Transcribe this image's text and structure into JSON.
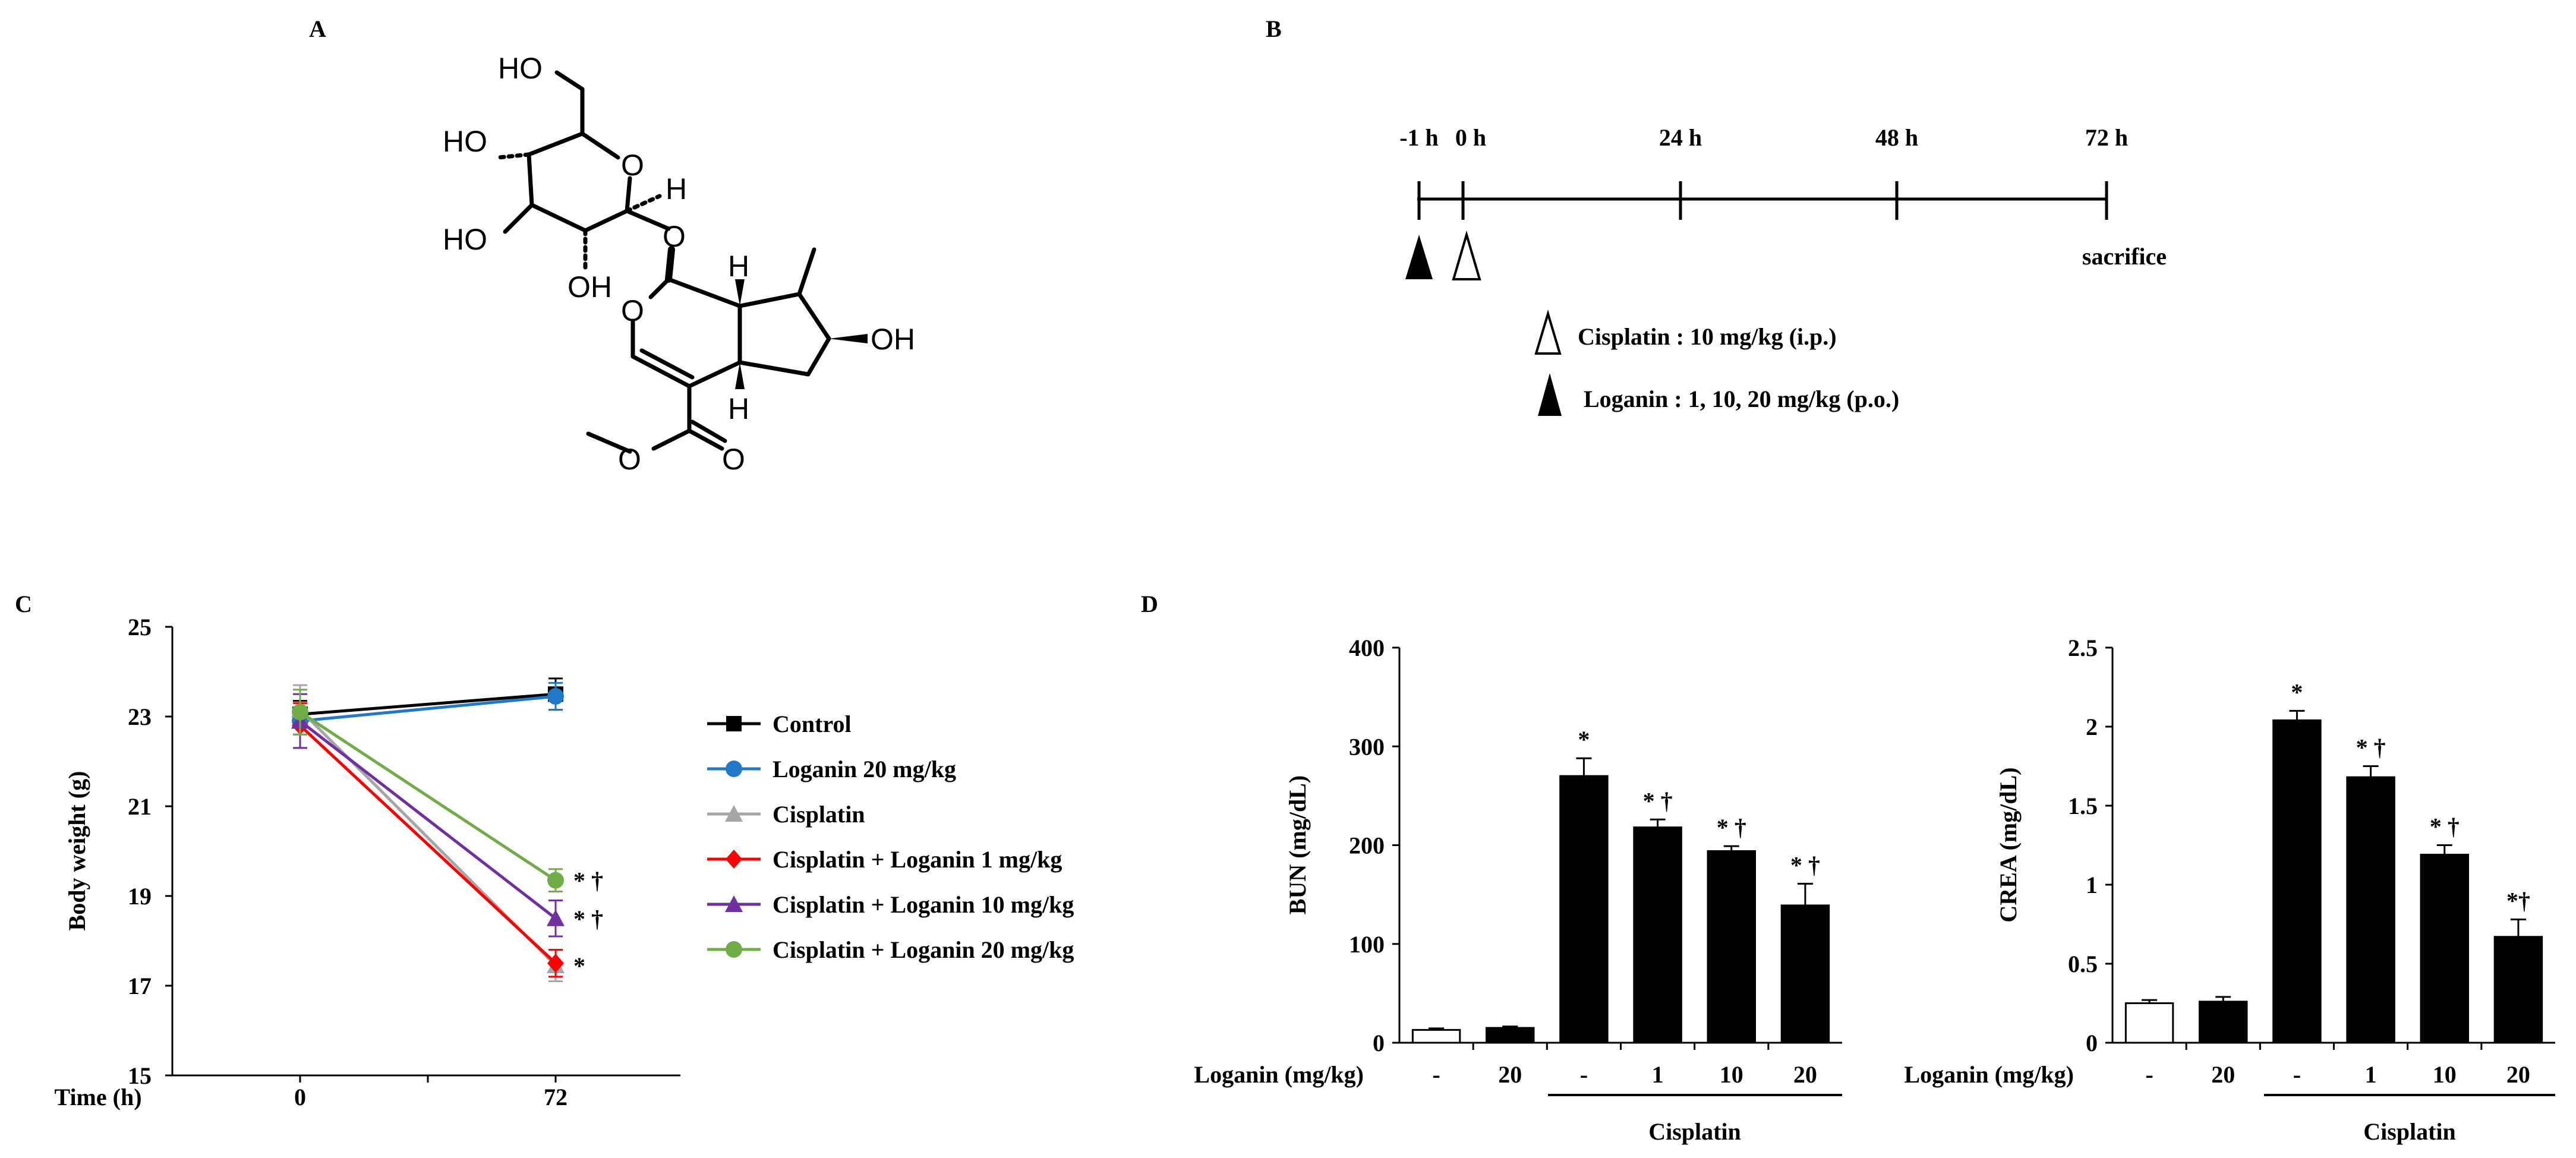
{
  "panels": {
    "a": {
      "label": "A"
    },
    "b": {
      "label": "B"
    },
    "c": {
      "label": "C"
    },
    "d": {
      "label": "D"
    }
  },
  "structure": {
    "atoms": {
      "ho_top": "HO",
      "ho_left1": "HO",
      "ho_left2": "HO",
      "oh_bottom": "OH",
      "o_ring": "O",
      "h_ring": "H",
      "o_link": "O",
      "o_pyran": "O",
      "h_upper": "H",
      "oh_right": "OH",
      "h_lower": "H",
      "o_ester": "O",
      "o_carbonyl": "O"
    }
  },
  "timeline": {
    "ticks": [
      "-1 h",
      "0 h",
      "24 h",
      "48 h",
      "72 h"
    ],
    "end_label": "sacrifice",
    "legend_cisplatin": "Cisplatin : 10 mg/kg (i.p.)",
    "legend_loganin": "Loganin : 1, 10, 20 mg/kg (p.o.)"
  },
  "chart_data": [
    {
      "type": "line",
      "panel": "C",
      "xlabel": "Time (h)",
      "ylabel": "Body weight (g)",
      "x": [
        0,
        72
      ],
      "x_ticks": [
        "0",
        "72"
      ],
      "ylim": [
        15,
        25
      ],
      "y_ticks": [
        "15",
        "17",
        "19",
        "21",
        "23",
        "25"
      ],
      "legend_position": "right",
      "series": [
        {
          "name": "Control",
          "color": "#000000",
          "marker": "square",
          "values": [
            23.05,
            23.5
          ],
          "errors": [
            0.3,
            0.35
          ],
          "annotation": ""
        },
        {
          "name": "Loganin 20 mg/kg",
          "color": "#1f78c8",
          "marker": "circle",
          "values": [
            22.9,
            23.45
          ],
          "errors": [
            0.3,
            0.3
          ],
          "annotation": ""
        },
        {
          "name": "Cisplatin",
          "color": "#a6a6a6",
          "marker": "triangle",
          "values": [
            23.15,
            17.45
          ],
          "errors": [
            0.55,
            0.35
          ],
          "annotation": "*"
        },
        {
          "name": "Cisplatin + Loganin 1 mg/kg",
          "color": "#ff0000",
          "marker": "diamond",
          "values": [
            22.8,
            17.5
          ],
          "errors": [
            0.5,
            0.3
          ],
          "annotation": ""
        },
        {
          "name": "Cisplatin + Loganin 10 mg/kg",
          "color": "#7030a0",
          "marker": "triangle",
          "values": [
            22.9,
            18.5
          ],
          "errors": [
            0.6,
            0.4
          ],
          "annotation": "* †"
        },
        {
          "name": "Cisplatin + Loganin 20 mg/kg",
          "color": "#70ad47",
          "marker": "circle",
          "values": [
            23.1,
            19.35
          ],
          "errors": [
            0.5,
            0.25
          ],
          "annotation": "* †"
        }
      ]
    },
    {
      "type": "bar",
      "panel": "D",
      "ylabel": "BUN (mg/dL)",
      "xlabel": "Loganin (mg/kg)",
      "categories": [
        "-",
        "20",
        "-",
        "1",
        "10",
        "20"
      ],
      "values": [
        13,
        15,
        270,
        218,
        194,
        139
      ],
      "errors": [
        1.5,
        1.5,
        18,
        8,
        5,
        22
      ],
      "fills": [
        "#ffffff",
        "#000000",
        "#000000",
        "#000000",
        "#000000",
        "#000000"
      ],
      "annotations": [
        "",
        "",
        "*",
        "* †",
        "* †",
        "* †"
      ],
      "ylim": [
        0,
        400
      ],
      "y_ticks": [
        "0",
        "100",
        "200",
        "300",
        "400"
      ],
      "group_label": "Cisplatin"
    },
    {
      "type": "bar",
      "panel": "D",
      "ylabel": "CREA (mg/dL)",
      "xlabel": "Loganin (mg/kg)",
      "categories": [
        "-",
        "20",
        "-",
        "1",
        "10",
        "20"
      ],
      "values": [
        0.25,
        0.26,
        2.04,
        1.68,
        1.19,
        0.67
      ],
      "errors": [
        0.02,
        0.03,
        0.06,
        0.07,
        0.06,
        0.11
      ],
      "fills": [
        "#ffffff",
        "#000000",
        "#000000",
        "#000000",
        "#000000",
        "#000000"
      ],
      "annotations": [
        "",
        "",
        "*",
        "* †",
        "* †",
        "*†"
      ],
      "ylim": [
        0,
        2.5
      ],
      "y_ticks": [
        "0",
        "0.5",
        "1",
        "1.5",
        "2",
        "2.5"
      ],
      "group_label": "Cisplatin"
    }
  ]
}
